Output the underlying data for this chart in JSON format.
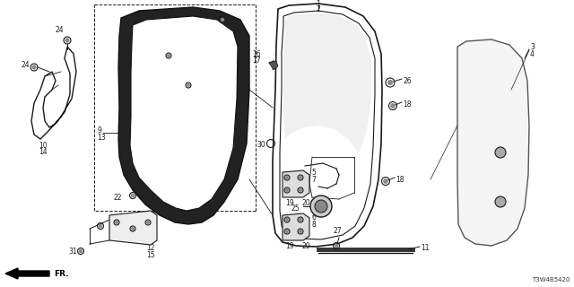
{
  "bg_color": "#ffffff",
  "line_color": "#1a1a1a",
  "text_color": "#1a1a1a",
  "diagram_id": "T3W4B5420",
  "gray_color": "#888888",
  "mid_gray": "#aaaaaa",
  "light_gray": "#cccccc"
}
